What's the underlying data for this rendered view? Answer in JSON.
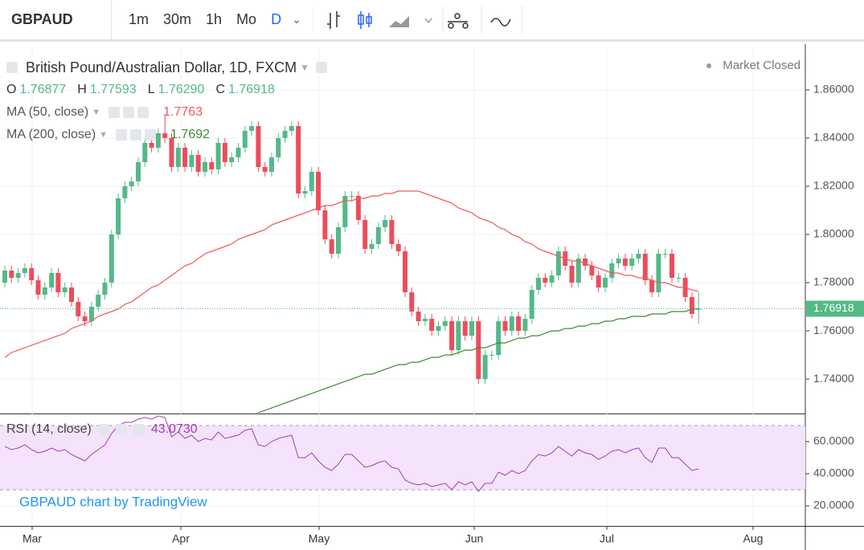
{
  "toolbar": {
    "symbol": "GBPAUD",
    "intervals": [
      "1m",
      "30m",
      "1h",
      "Mo",
      "D"
    ]
  },
  "chart_data": {
    "type": "candlestick",
    "title": "British Pound/Australian Dollar, 1D, FXCM",
    "status": "Market Closed",
    "ohlc_header": [
      {
        "label": "O",
        "value": "1.76877"
      },
      {
        "label": "H",
        "value": "1.77593"
      },
      {
        "label": "L",
        "value": "1.76290"
      },
      {
        "label": "C",
        "value": "1.76918"
      }
    ],
    "x_labels": [
      "Mar",
      "Apr",
      "May",
      "Jun",
      "Jul",
      "Aug"
    ],
    "up_color": "#53b987",
    "down_color": "#eb4d5c",
    "open": [
      1.78,
      1.785,
      1.782,
      1.784,
      1.786,
      1.781,
      1.775,
      1.778,
      1.784,
      1.776,
      1.778,
      1.772,
      1.766,
      1.764,
      1.77,
      1.775,
      1.78,
      1.8,
      1.815,
      1.82,
      1.822,
      1.83,
      1.838,
      1.836,
      1.842,
      1.84,
      1.828,
      1.836,
      1.828,
      1.833,
      1.826,
      1.83,
      1.827,
      1.838,
      1.83,
      1.832,
      1.836,
      1.843,
      1.845,
      1.828,
      1.826,
      1.832,
      1.84,
      1.843,
      1.845,
      1.817,
      1.818,
      1.826,
      1.81,
      1.798,
      1.792,
      1.803,
      1.816,
      1.816,
      1.806,
      1.794,
      1.796,
      1.803,
      1.806,
      1.796,
      1.793,
      1.776,
      1.768,
      1.764,
      1.765,
      1.76,
      1.762,
      1.764,
      1.752,
      1.764,
      1.758,
      1.764,
      1.74,
      1.75,
      1.75,
      1.764,
      1.76,
      1.766,
      1.76,
      1.765,
      1.777,
      1.782,
      1.78,
      1.783,
      1.793,
      1.787,
      1.78,
      1.79,
      1.787,
      1.783,
      1.778,
      1.782,
      1.788,
      1.79,
      1.787,
      1.79,
      1.792,
      1.781,
      1.776,
      1.792,
      1.792,
      1.782,
      1.782,
      1.774,
      1.7688
    ],
    "high": [
      1.787,
      1.787,
      1.786,
      1.788,
      1.788,
      1.783,
      1.78,
      1.786,
      1.786,
      1.78,
      1.78,
      1.774,
      1.768,
      1.772,
      1.777,
      1.782,
      1.802,
      1.817,
      1.822,
      1.824,
      1.832,
      1.84,
      1.84,
      1.844,
      1.85,
      1.842,
      1.838,
      1.838,
      1.835,
      1.835,
      1.832,
      1.832,
      1.84,
      1.84,
      1.834,
      1.838,
      1.845,
      1.847,
      1.847,
      1.83,
      1.834,
      1.842,
      1.845,
      1.847,
      1.847,
      1.82,
      1.828,
      1.828,
      1.812,
      1.8,
      1.805,
      1.818,
      1.818,
      1.818,
      1.808,
      1.798,
      1.805,
      1.808,
      1.808,
      1.798,
      1.795,
      1.778,
      1.77,
      1.767,
      1.767,
      1.764,
      1.766,
      1.766,
      1.766,
      1.766,
      1.766,
      1.766,
      1.752,
      1.752,
      1.766,
      1.766,
      1.768,
      1.768,
      1.767,
      1.779,
      1.784,
      1.784,
      1.785,
      1.795,
      1.795,
      1.789,
      1.792,
      1.792,
      1.789,
      1.785,
      1.784,
      1.79,
      1.792,
      1.792,
      1.792,
      1.794,
      1.794,
      1.783,
      1.794,
      1.794,
      1.794,
      1.784,
      1.784,
      1.776,
      1.7759
    ],
    "low": [
      1.778,
      1.78,
      1.78,
      1.782,
      1.779,
      1.773,
      1.773,
      1.776,
      1.774,
      1.774,
      1.77,
      1.764,
      1.762,
      1.762,
      1.768,
      1.773,
      1.778,
      1.798,
      1.813,
      1.818,
      1.82,
      1.828,
      1.834,
      1.834,
      1.838,
      1.826,
      1.826,
      1.826,
      1.826,
      1.824,
      1.824,
      1.825,
      1.825,
      1.828,
      1.828,
      1.83,
      1.834,
      1.841,
      1.826,
      1.824,
      1.824,
      1.83,
      1.838,
      1.841,
      1.815,
      1.815,
      1.816,
      1.808,
      1.796,
      1.79,
      1.79,
      1.801,
      1.814,
      1.804,
      1.792,
      1.792,
      1.794,
      1.801,
      1.794,
      1.791,
      1.774,
      1.766,
      1.762,
      1.762,
      1.758,
      1.758,
      1.76,
      1.75,
      1.75,
      1.756,
      1.756,
      1.738,
      1.738,
      1.748,
      1.748,
      1.758,
      1.758,
      1.758,
      1.758,
      1.763,
      1.775,
      1.778,
      1.778,
      1.781,
      1.785,
      1.778,
      1.778,
      1.785,
      1.781,
      1.776,
      1.776,
      1.78,
      1.786,
      1.785,
      1.785,
      1.788,
      1.779,
      1.774,
      1.774,
      1.79,
      1.78,
      1.78,
      1.772,
      1.765,
      1.7629
    ],
    "close": [
      1.785,
      1.782,
      1.784,
      1.786,
      1.781,
      1.775,
      1.778,
      1.784,
      1.776,
      1.778,
      1.772,
      1.766,
      1.764,
      1.77,
      1.775,
      1.78,
      1.8,
      1.815,
      1.82,
      1.822,
      1.83,
      1.838,
      1.836,
      1.842,
      1.84,
      1.828,
      1.836,
      1.828,
      1.833,
      1.826,
      1.83,
      1.827,
      1.838,
      1.83,
      1.832,
      1.836,
      1.843,
      1.845,
      1.828,
      1.826,
      1.832,
      1.84,
      1.843,
      1.845,
      1.817,
      1.818,
      1.826,
      1.81,
      1.798,
      1.792,
      1.803,
      1.816,
      1.816,
      1.806,
      1.794,
      1.796,
      1.803,
      1.806,
      1.796,
      1.793,
      1.776,
      1.768,
      1.764,
      1.765,
      1.76,
      1.762,
      1.764,
      1.752,
      1.764,
      1.758,
      1.764,
      1.74,
      1.75,
      1.75,
      1.764,
      1.76,
      1.766,
      1.76,
      1.765,
      1.777,
      1.782,
      1.78,
      1.783,
      1.793,
      1.787,
      1.78,
      1.79,
      1.787,
      1.783,
      1.778,
      1.782,
      1.788,
      1.79,
      1.787,
      1.79,
      1.792,
      1.781,
      1.776,
      1.792,
      1.792,
      1.782,
      1.782,
      1.774,
      1.767,
      1.7692
    ],
    "series": [
      {
        "name": "MA (50, close)",
        "color": "#f05a5a",
        "value_label": "1.7763",
        "values": [
          1.749,
          1.751,
          1.752,
          1.753,
          1.754,
          1.755,
          1.756,
          1.757,
          1.758,
          1.759,
          1.761,
          1.762,
          1.763,
          1.764,
          1.766,
          1.767,
          1.768,
          1.769,
          1.771,
          1.772,
          1.774,
          1.776,
          1.778,
          1.779,
          1.781,
          1.783,
          1.785,
          1.787,
          1.788,
          1.79,
          1.792,
          1.793,
          1.794,
          1.795,
          1.796,
          1.798,
          1.799,
          1.8,
          1.801,
          1.802,
          1.804,
          1.805,
          1.806,
          1.807,
          1.808,
          1.809,
          1.81,
          1.811,
          1.812,
          1.812,
          1.813,
          1.814,
          1.814,
          1.815,
          1.815,
          1.816,
          1.816,
          1.817,
          1.817,
          1.818,
          1.818,
          1.818,
          1.818,
          1.817,
          1.816,
          1.815,
          1.814,
          1.813,
          1.811,
          1.81,
          1.809,
          1.807,
          1.806,
          1.805,
          1.803,
          1.802,
          1.8,
          1.799,
          1.797,
          1.796,
          1.794,
          1.793,
          1.792,
          1.791,
          1.79,
          1.789,
          1.789,
          1.788,
          1.787,
          1.786,
          1.785,
          1.784,
          1.784,
          1.783,
          1.783,
          1.782,
          1.782,
          1.781,
          1.78,
          1.78,
          1.779,
          1.778,
          1.778,
          1.777,
          1.7763
        ]
      },
      {
        "name": "MA (200, close)",
        "color": "#3d8b37",
        "value_label": "1.7692",
        "values": [
          null,
          null,
          null,
          null,
          null,
          null,
          null,
          null,
          null,
          null,
          null,
          null,
          null,
          null,
          null,
          null,
          null,
          null,
          null,
          null,
          null,
          null,
          null,
          null,
          null,
          null,
          null,
          null,
          null,
          null,
          null,
          null,
          null,
          null,
          null,
          null,
          null,
          null,
          1.726,
          1.727,
          1.728,
          1.729,
          1.73,
          1.731,
          1.732,
          1.733,
          1.734,
          1.735,
          1.736,
          1.737,
          1.738,
          1.739,
          1.74,
          1.741,
          1.742,
          1.742,
          1.743,
          1.744,
          1.745,
          1.746,
          1.746,
          1.747,
          1.747,
          1.748,
          1.749,
          1.749,
          1.75,
          1.75,
          1.751,
          1.752,
          1.752,
          1.753,
          1.753,
          1.754,
          1.755,
          1.755,
          1.756,
          1.757,
          1.757,
          1.758,
          1.758,
          1.759,
          1.76,
          1.76,
          1.761,
          1.761,
          1.762,
          1.762,
          1.763,
          1.763,
          1.764,
          1.764,
          1.765,
          1.765,
          1.766,
          1.766,
          1.766,
          1.767,
          1.767,
          1.767,
          1.768,
          1.768,
          1.768,
          1.769,
          1.7692
        ]
      }
    ],
    "last_price": {
      "value": 1.76918,
      "label": "1.76918"
    },
    "ylim": [
      1.7257,
      1.8773
    ],
    "yticks": [
      {
        "value": 1.74,
        "label": "1.74000"
      },
      {
        "value": 1.76,
        "label": "1.76000"
      },
      {
        "value": 1.78,
        "label": "1.78000"
      },
      {
        "value": 1.8,
        "label": "1.80000"
      },
      {
        "value": 1.82,
        "label": "1.82000"
      },
      {
        "value": 1.84,
        "label": "1.84000"
      },
      {
        "value": 1.86,
        "label": "1.86000"
      }
    ],
    "grid": true
  },
  "rsi": {
    "name": "RSI (14, close)",
    "value_label": "43.0730",
    "color": "#a040b8",
    "values": [
      57,
      55,
      56,
      58,
      55,
      53,
      54,
      56,
      54,
      55,
      52,
      50,
      48,
      52,
      55,
      58,
      65,
      70,
      72,
      72,
      74,
      75,
      74,
      76,
      75,
      63,
      66,
      62,
      64,
      60,
      62,
      61,
      66,
      62,
      63,
      64,
      67,
      68,
      58,
      57,
      60,
      62,
      63,
      64,
      50,
      50,
      53,
      48,
      44,
      42,
      46,
      52,
      52,
      48,
      44,
      45,
      47,
      48,
      44,
      43,
      36,
      34,
      33,
      34,
      32,
      33,
      34,
      30,
      35,
      33,
      35,
      29,
      34,
      34,
      41,
      39,
      42,
      40,
      42,
      48,
      52,
      51,
      53,
      57,
      54,
      51,
      55,
      53,
      52,
      49,
      51,
      54,
      55,
      53,
      55,
      56,
      50,
      47,
      56,
      56,
      50,
      50,
      46,
      42,
      43.073
    ],
    "band": [
      30,
      70
    ],
    "ylim": [
      7.5,
      76.5
    ],
    "yticks": [
      {
        "value": 20,
        "label": "20.0000"
      },
      {
        "value": 40,
        "label": "40.0000"
      },
      {
        "value": 60,
        "label": "60.0000"
      }
    ]
  },
  "watermark": "GBPAUD chart by TradingView"
}
